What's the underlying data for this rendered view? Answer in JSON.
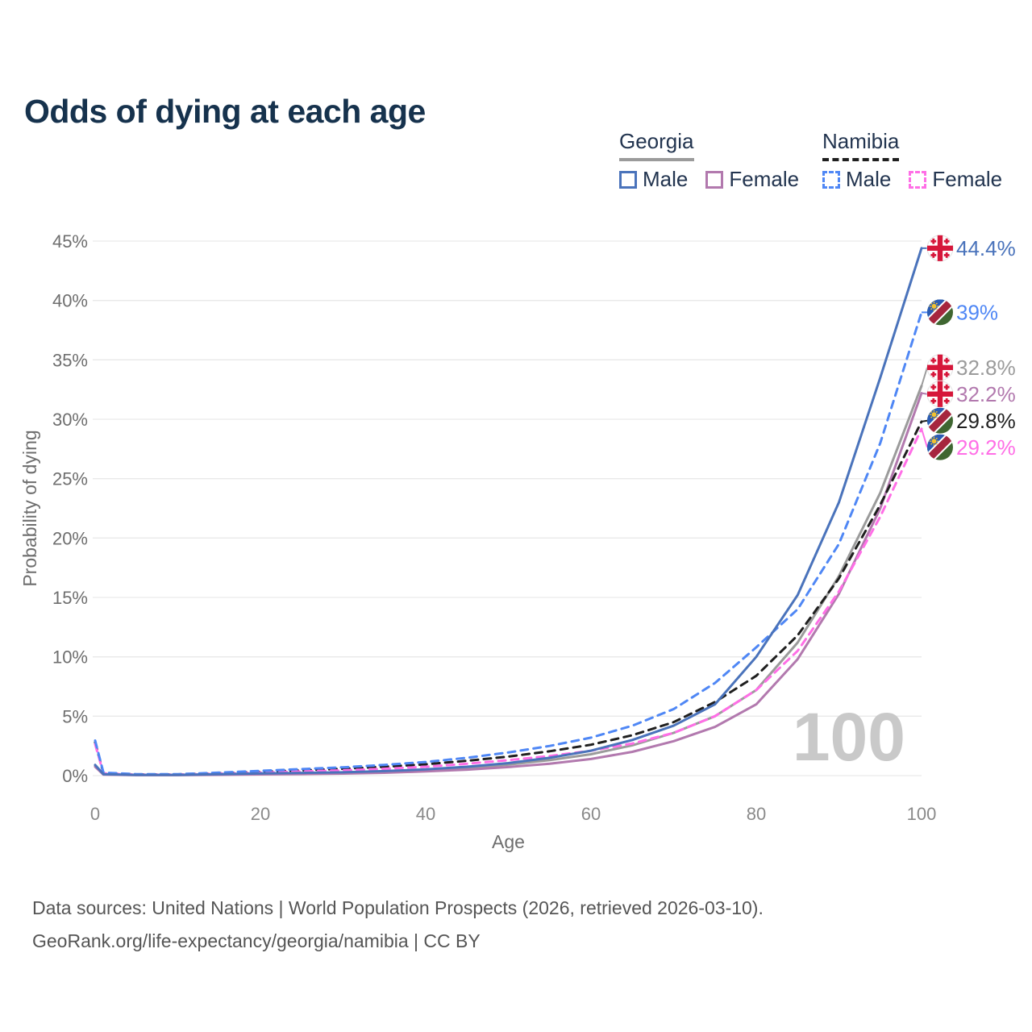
{
  "title": "Odds of dying at each age",
  "legend": {
    "georgia": {
      "title": "Georgia",
      "male": "Male",
      "female": "Female"
    },
    "namibia": {
      "title": "Namibia",
      "male": "Male",
      "female": "Female"
    }
  },
  "footer": {
    "line1": "Data sources: United Nations | World Population Prospects (2026, retrieved 2026-03-10).",
    "line2": "GeoRank.org/life-expectancy/georgia/namibia | CC BY"
  },
  "colors": {
    "title_text": "#16324d",
    "legend_text": "#22344f",
    "axis_text": "#6e6e6e",
    "grid": "#e9e9e9",
    "watermark": "#c9c9c9",
    "georgia_underline": "#9b9b9b",
    "namibia_underline": "#1f1f1f"
  },
  "chart_data": {
    "type": "line",
    "title": "Odds of dying at each age",
    "xlabel": "Age",
    "ylabel": "Probability of dying",
    "xlim": [
      0,
      100
    ],
    "ylim": [
      0,
      45
    ],
    "x_ticks": [
      0,
      20,
      40,
      60,
      80,
      100
    ],
    "y_ticks": [
      0,
      5,
      10,
      15,
      20,
      25,
      30,
      35,
      40,
      45
    ],
    "y_tick_suffix": "%",
    "grid": "horizontal",
    "legend_position": "top-right",
    "watermark": "100",
    "ages": [
      0,
      1,
      5,
      10,
      15,
      20,
      25,
      30,
      35,
      40,
      45,
      50,
      55,
      60,
      65,
      70,
      75,
      80,
      85,
      90,
      95,
      100
    ],
    "series": [
      {
        "id": "georgia_total",
        "name": "Georgia",
        "color": "#9b9b9b",
        "dash": false,
        "flag": "georgia",
        "end_label": "32.8%",
        "values": [
          0.83,
          0.1,
          0.05,
          0.05,
          0.1,
          0.14,
          0.18,
          0.23,
          0.32,
          0.45,
          0.65,
          0.92,
          1.3,
          1.8,
          2.55,
          3.6,
          5.0,
          7.2,
          11.2,
          16.8,
          23.8,
          32.8
        ]
      },
      {
        "id": "georgia_female",
        "name": "Georgia Female",
        "color": "#b279ae",
        "dash": false,
        "flag": "georgia",
        "end_label": "32.2%",
        "values": [
          0.75,
          0.08,
          0.04,
          0.04,
          0.07,
          0.1,
          0.13,
          0.17,
          0.24,
          0.35,
          0.5,
          0.72,
          1.0,
          1.4,
          2.0,
          2.9,
          4.1,
          6.0,
          9.8,
          15.3,
          22.5,
          32.2
        ]
      },
      {
        "id": "namibia_total",
        "name": "Namibia",
        "color": "#1f1f1f",
        "dash": true,
        "flag": "namibia",
        "end_label": "29.8%",
        "values": [
          2.8,
          0.2,
          0.1,
          0.1,
          0.2,
          0.32,
          0.45,
          0.58,
          0.75,
          0.95,
          1.25,
          1.6,
          2.05,
          2.6,
          3.4,
          4.5,
          6.2,
          8.4,
          11.8,
          16.6,
          22.8,
          29.8
        ]
      },
      {
        "id": "namibia_female",
        "name": "Namibia Female",
        "color": "#ff6ee6",
        "dash": true,
        "flag": "namibia",
        "end_label": "29.2%",
        "values": [
          2.65,
          0.18,
          0.09,
          0.09,
          0.16,
          0.25,
          0.35,
          0.45,
          0.58,
          0.75,
          1.0,
          1.3,
          1.65,
          2.1,
          2.7,
          3.6,
          5.0,
          7.2,
          10.5,
          15.5,
          21.8,
          29.2
        ]
      },
      {
        "id": "namibia_male",
        "name": "Namibia Male",
        "color": "#4f87f5",
        "dash": true,
        "flag": "namibia",
        "end_label": "39%",
        "values": [
          2.95,
          0.25,
          0.12,
          0.12,
          0.25,
          0.4,
          0.55,
          0.7,
          0.9,
          1.15,
          1.5,
          1.95,
          2.5,
          3.2,
          4.2,
          5.6,
          7.8,
          10.8,
          14.0,
          19.5,
          28.0,
          39.0
        ]
      },
      {
        "id": "georgia_male",
        "name": "Georgia Male",
        "color": "#4a73bb",
        "dash": false,
        "flag": "georgia",
        "end_label": "44.4%",
        "values": [
          0.9,
          0.12,
          0.06,
          0.06,
          0.12,
          0.18,
          0.23,
          0.28,
          0.38,
          0.52,
          0.75,
          1.05,
          1.5,
          2.1,
          3.0,
          4.2,
          6.0,
          10.0,
          15.2,
          23.0,
          33.5,
          44.4
        ]
      }
    ],
    "flag_colors": {
      "georgia": {
        "bg": "#ffffff",
        "cross": "#d6163a",
        "ring": "#e2e2e2"
      },
      "namibia": {
        "blue": "#2b5cb5",
        "red": "#a6263e",
        "green": "#3f6631",
        "white": "#ffffff",
        "sun": "#f2c230"
      }
    }
  }
}
